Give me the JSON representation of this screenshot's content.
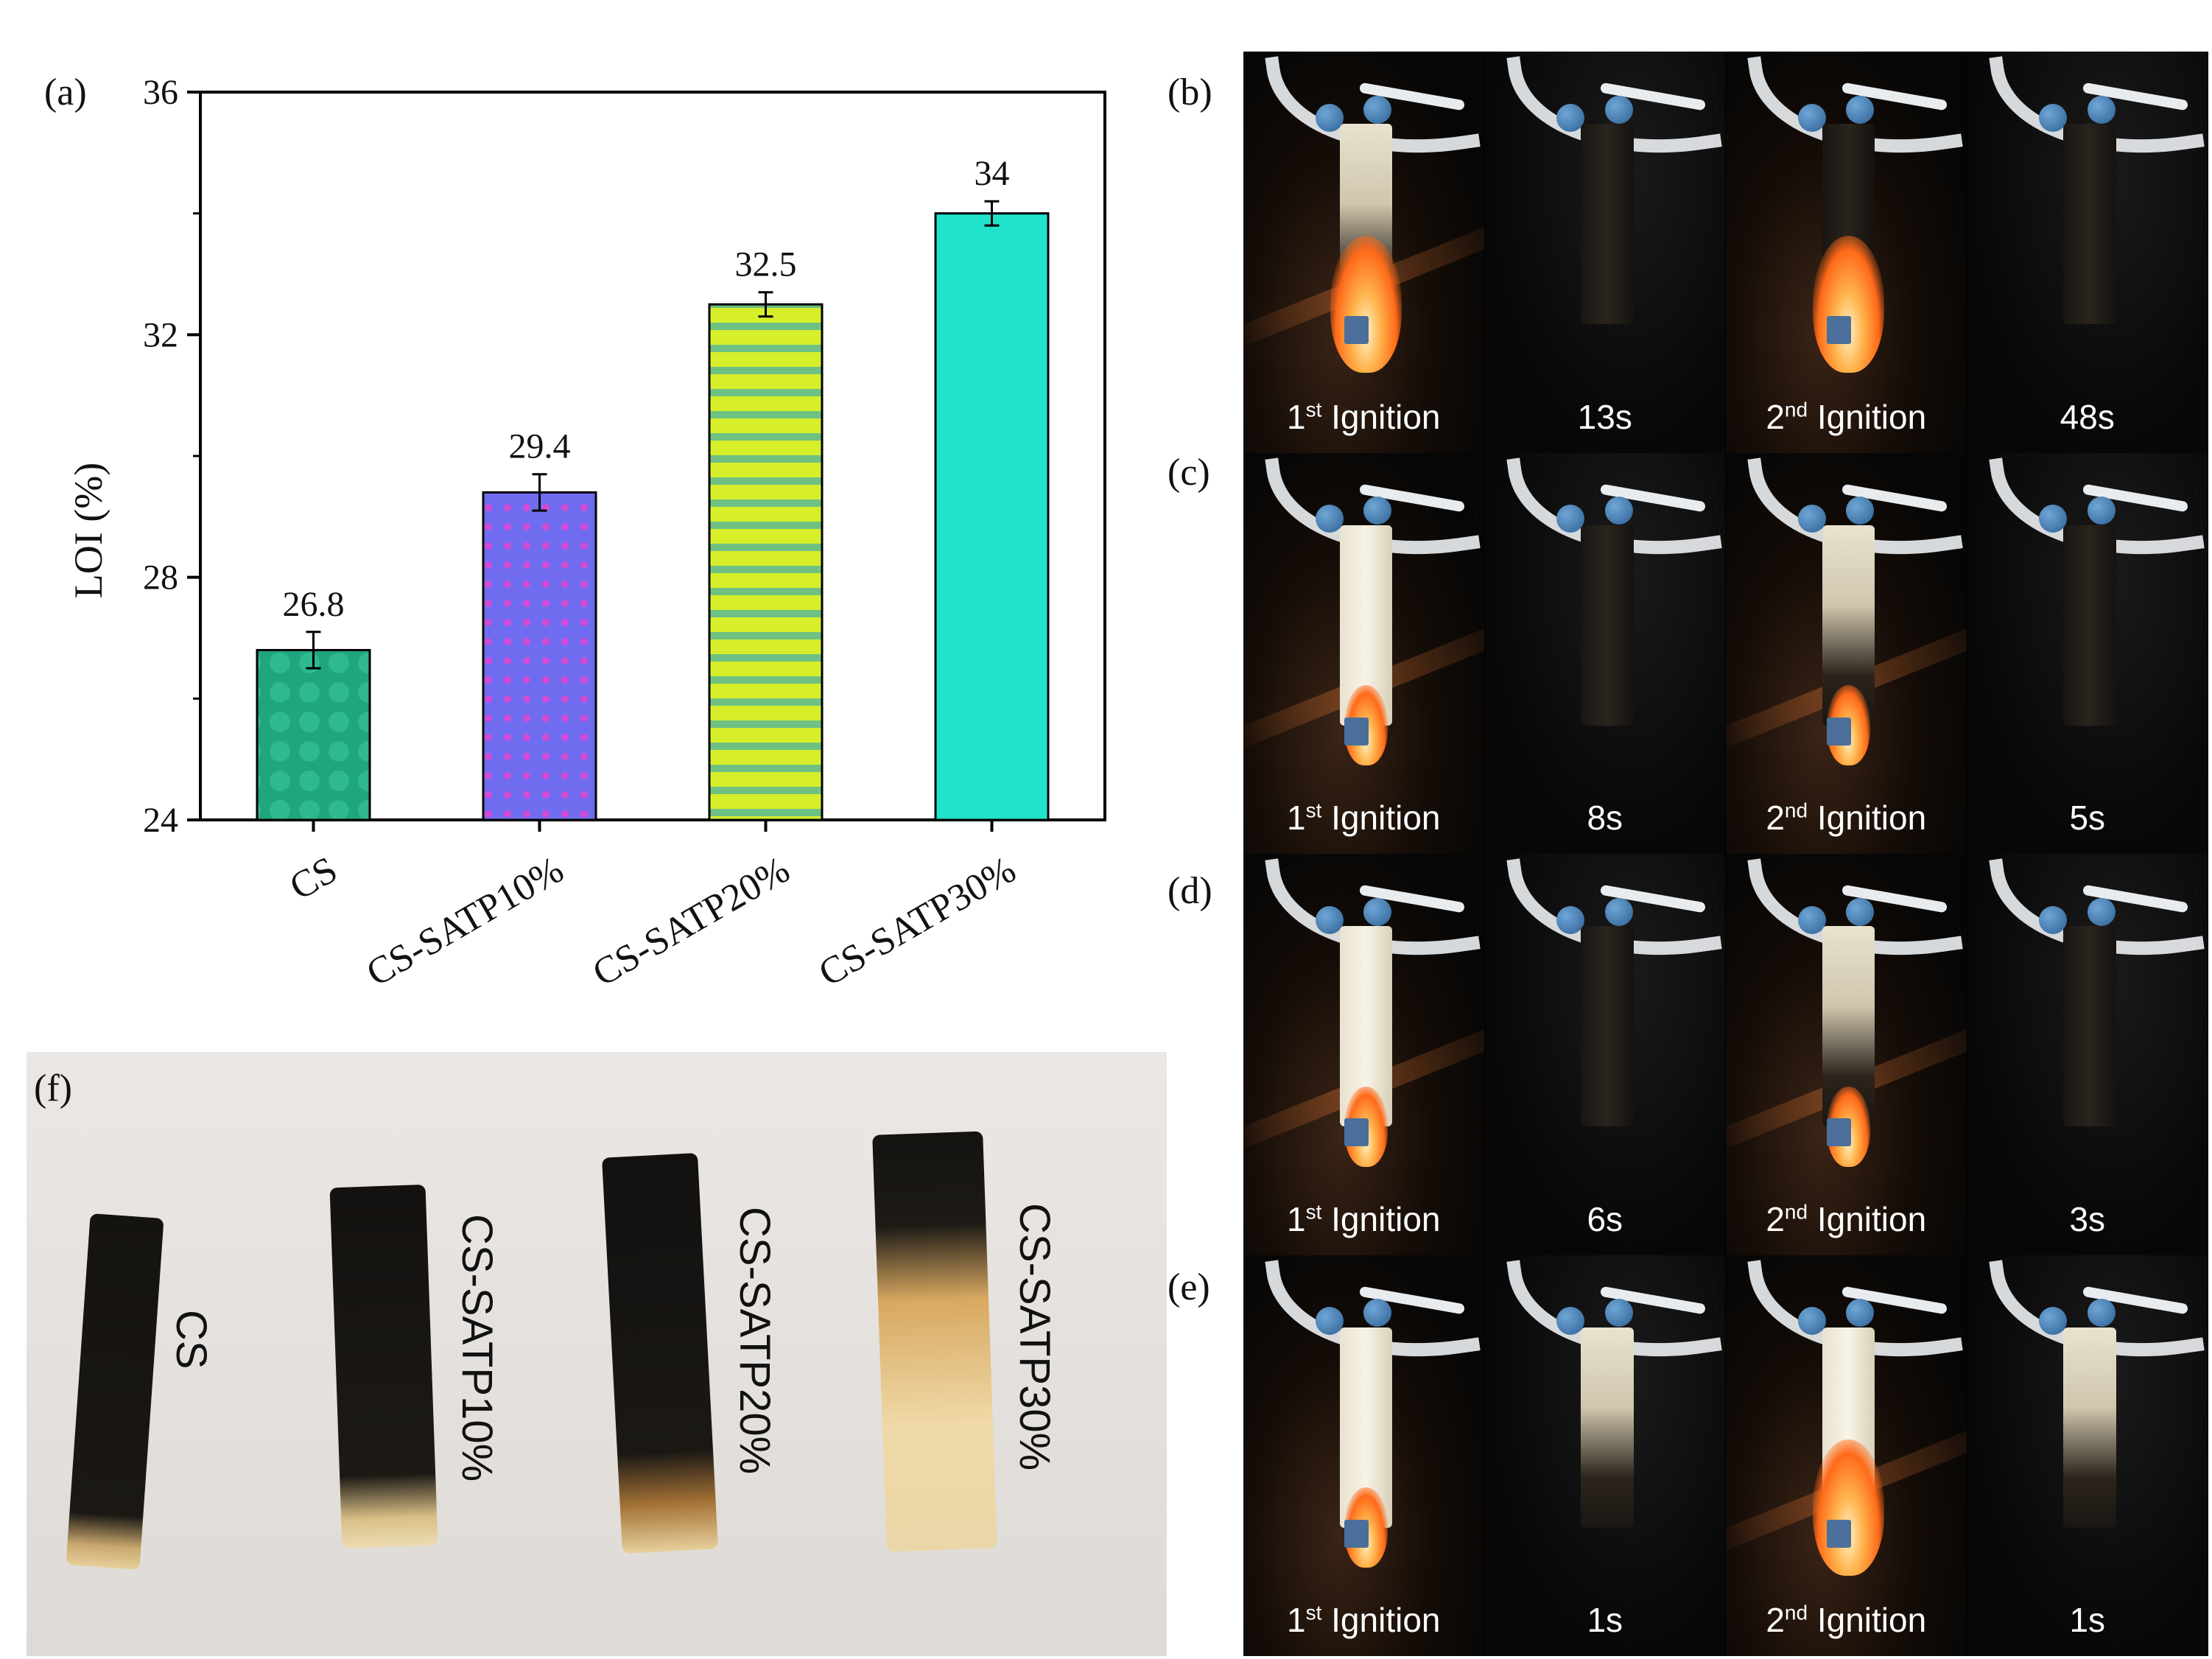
{
  "panel_labels": {
    "a": "(a)",
    "b": "(b)",
    "c": "(c)",
    "d": "(d)",
    "e": "(e)",
    "f": "(f)"
  },
  "colors": {
    "bar_cs": "#1fa67e",
    "bar_10": "#7a5cff",
    "bar_20": "#c8ef2a",
    "bar_30": "#21e3cc"
  },
  "chart_data": {
    "type": "bar",
    "title": "",
    "ylabel": "LOI (%)",
    "xlabel": "",
    "categories": [
      "CS",
      "CS-SATP10%",
      "CS-SATP20%",
      "CS-SATP30%"
    ],
    "values": [
      26.8,
      29.4,
      32.5,
      34
    ],
    "value_labels": [
      "26.8",
      "29.4",
      "32.5",
      "34"
    ],
    "error": [
      0.3,
      0.3,
      0.2,
      0.2
    ],
    "ylim": [
      24,
      36
    ],
    "yticks": [
      24,
      28,
      32,
      36
    ],
    "ytick_labels": [
      "24",
      "28",
      "32",
      "36"
    ]
  },
  "photo_grid": {
    "rows": [
      {
        "label": "(b)",
        "captions": [
          "Ignition",
          "13s",
          "Ignition",
          "48s"
        ],
        "sups": [
          "st",
          "",
          "nd",
          ""
        ],
        "nums": [
          "1",
          "",
          "2",
          ""
        ]
      },
      {
        "label": "(c)",
        "captions": [
          "Ignition",
          "8s",
          "Ignition",
          "5s"
        ],
        "sups": [
          "st",
          "",
          "nd",
          ""
        ],
        "nums": [
          "1",
          "",
          "2",
          ""
        ]
      },
      {
        "label": "(d)",
        "captions": [
          "Ignition",
          "6s",
          "Ignition",
          "3s"
        ],
        "sups": [
          "st",
          "",
          "nd",
          ""
        ],
        "nums": [
          "1",
          "",
          "2",
          ""
        ]
      },
      {
        "label": "(e)",
        "captions": [
          "Ignition",
          "1s",
          "Ignition",
          "1s"
        ],
        "sups": [
          "st",
          "",
          "nd",
          ""
        ],
        "nums": [
          "1",
          "",
          "2",
          ""
        ]
      }
    ]
  },
  "residues": {
    "cs": "CS",
    "s10": "CS-SATP10%",
    "s20": "CS-SATP20%",
    "s30": "CS-SATP30%"
  }
}
